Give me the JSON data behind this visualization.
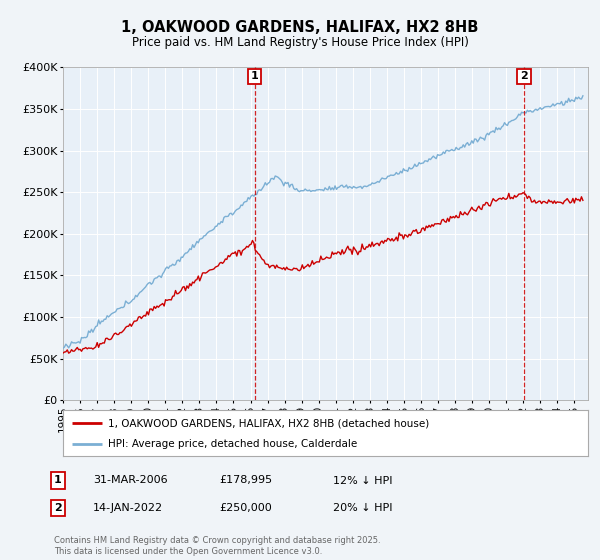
{
  "title": "1, OAKWOOD GARDENS, HALIFAX, HX2 8HB",
  "subtitle": "Price paid vs. HM Land Registry's House Price Index (HPI)",
  "bg_color": "#f0f4f8",
  "plot_bg_color": "#e8f0f8",
  "ylim": [
    0,
    400000
  ],
  "yticks": [
    0,
    50000,
    100000,
    150000,
    200000,
    250000,
    300000,
    350000,
    400000
  ],
  "ytick_labels": [
    "£0",
    "£50K",
    "£100K",
    "£150K",
    "£200K",
    "£250K",
    "£300K",
    "£350K",
    "£400K"
  ],
  "xlim_start": 1995.0,
  "xlim_end": 2025.8,
  "xtick_years": [
    1995,
    1996,
    1997,
    1998,
    1999,
    2000,
    2001,
    2002,
    2003,
    2004,
    2005,
    2006,
    2007,
    2008,
    2009,
    2010,
    2011,
    2012,
    2013,
    2014,
    2015,
    2016,
    2017,
    2018,
    2019,
    2020,
    2021,
    2022,
    2023,
    2024,
    2025
  ],
  "vline1_x": 2006.25,
  "vline2_x": 2022.04,
  "sale1_date": "31-MAR-2006",
  "sale1_price": "£178,995",
  "sale1_note": "12% ↓ HPI",
  "sale2_date": "14-JAN-2022",
  "sale2_price": "£250,000",
  "sale2_note": "20% ↓ HPI",
  "legend_line1": "1, OAKWOOD GARDENS, HALIFAX, HX2 8HB (detached house)",
  "legend_line2": "HPI: Average price, detached house, Calderdale",
  "footnote": "Contains HM Land Registry data © Crown copyright and database right 2025.\nThis data is licensed under the Open Government Licence v3.0.",
  "line_red_color": "#cc0000",
  "line_blue_color": "#7bafd4",
  "grid_color": "#ffffff",
  "vline_color": "#cc0000"
}
